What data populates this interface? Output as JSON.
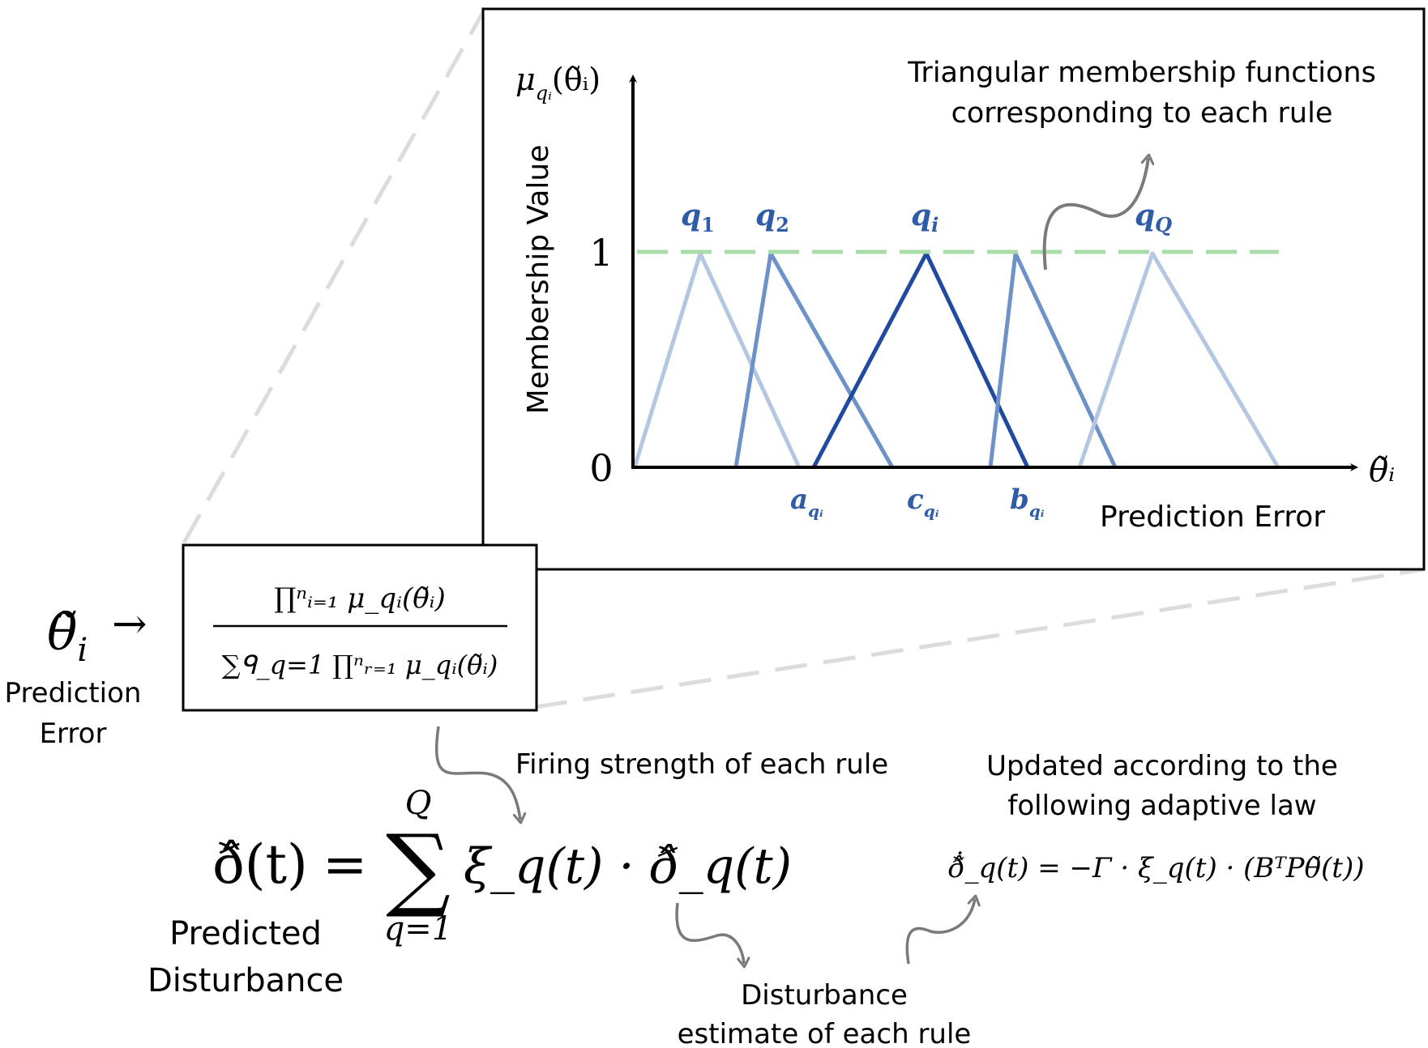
{
  "chart": {
    "y_axis_symbol": "μ",
    "y_axis_symbol_sub": "qᵢ",
    "y_axis_symbol_arg": "(θ̃ᵢ)",
    "y_label": "Membership Value",
    "x_axis_symbol": "θ̃ᵢ",
    "x_label": "Prediction Error",
    "y_tick_1": "1",
    "y_tick_0": "0",
    "annotation_line1": "Triangular membership functions",
    "annotation_line2": "corresponding to each rule",
    "peak_labels": [
      {
        "base": "q",
        "sub": "1"
      },
      {
        "base": "q",
        "sub": "2"
      },
      {
        "base": "q",
        "sub": "i"
      },
      {
        "base": "q",
        "sub": "Q"
      }
    ],
    "param_labels": [
      {
        "base": "a",
        "sub": "qᵢ"
      },
      {
        "base": "c",
        "sub": "qᵢ"
      },
      {
        "base": "b",
        "sub": "qᵢ"
      }
    ]
  },
  "formula_box": {
    "input_symbol": "θ̃",
    "input_sub": "i",
    "arrow": "→",
    "input_label_line1": "Prediction",
    "input_label_line2": "Error",
    "numerator": "∏ⁿᵢ₌₁ μ_qᵢ(θ̃ᵢ)",
    "denominator": "∑ᑫ_q=1 ∏ⁿᵣ₌₁ μ_qᵢ(θ̃ᵢ)"
  },
  "main_equation": {
    "lhs": "ð̂(t)",
    "equals": "=",
    "sum_upper": "Q",
    "sum_lower": "q=1",
    "term": "ξ_q(t) · ð̂_q(t)",
    "label_line1": "Predicted",
    "label_line2": "Disturbance"
  },
  "annotations": {
    "firing_strength": "Firing strength of each rule",
    "disturbance_line1": "Disturbance",
    "disturbance_line2": "estimate of each rule",
    "updated_line1": "Updated according to the",
    "updated_line2": "following adaptive law",
    "adaptive_law": "ð̂̇_q(t) = −Γ · ξ_q(t) · (BᵀPθ̃(t))"
  },
  "colors": {
    "light_blue": "#b3c6e2",
    "mid_blue": "#6d92c8",
    "dark_blue": "#1f4aa0",
    "label_blue": "#2f5ca8",
    "green_dash": "#a8dca8",
    "grey_guide": "#dcdcdc",
    "arrow_grey": "#7a7a7a"
  }
}
